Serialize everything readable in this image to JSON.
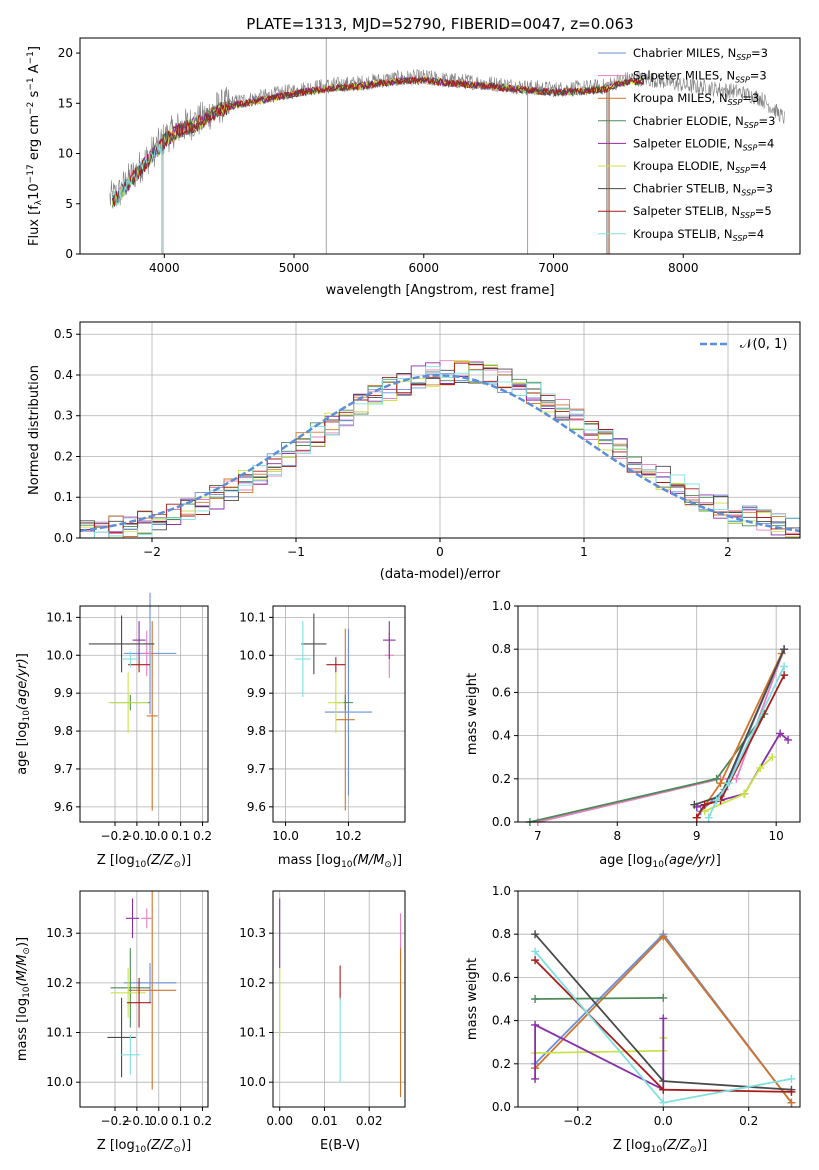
{
  "figure_title": "PLATE=1313, MJD=52790, FIBERID=0047, z=0.063",
  "colors": {
    "Chabrier MILES": "#6a8fd9",
    "Salpeter MILES": "#e87fbf",
    "Kroupa MILES": "#d2732a",
    "Chabrier ELODIE": "#4e8a59",
    "Salpeter ELODIE": "#8b2fa8",
    "Kroupa ELODIE": "#c9e34a",
    "Chabrier STELIB": "#4a4a4a",
    "Salpeter STELIB": "#a81c1c",
    "Kroupa STELIB": "#7ee0e0"
  },
  "chart_data": [
    {
      "id": "spectrum",
      "type": "line",
      "xlabel": "wavelength [Angstrom, rest frame]",
      "ylabel": "Flux [f",
      "xlim": [
        3350,
        8900
      ],
      "ylim": [
        0,
        21.5
      ],
      "xticks": [
        "4000",
        "5000",
        "6000",
        "7000",
        "8000"
      ],
      "yticks": [
        "0",
        "5",
        "10",
        "15",
        "20"
      ],
      "continuum": [
        [
          3580,
          5.5
        ],
        [
          3650,
          6
        ],
        [
          3700,
          7
        ],
        [
          3800,
          8.5
        ],
        [
          3900,
          10
        ],
        [
          4000,
          11.5
        ],
        [
          4100,
          12.5
        ],
        [
          4200,
          13
        ],
        [
          4300,
          13.5
        ],
        [
          4400,
          14.5
        ],
        [
          4500,
          15
        ],
        [
          4700,
          15.5
        ],
        [
          4900,
          16
        ],
        [
          5100,
          16.5
        ],
        [
          5300,
          16.8
        ],
        [
          5500,
          17
        ],
        [
          5800,
          17.5
        ],
        [
          6000,
          17.6
        ],
        [
          6200,
          17.3
        ],
        [
          6500,
          17
        ],
        [
          6800,
          16.6
        ],
        [
          7000,
          16.4
        ],
        [
          7200,
          16.5
        ],
        [
          7400,
          16.7
        ],
        [
          7500,
          17.2
        ],
        [
          7600,
          17.5
        ],
        [
          7800,
          17.3
        ],
        [
          8000,
          16.8
        ],
        [
          8200,
          16.5
        ],
        [
          8400,
          16.2
        ],
        [
          8600,
          15.5
        ],
        [
          8780,
          13.5
        ]
      ],
      "legend": [
        {
          "label": "Chabrier MILES, N",
          "nssp": "=3"
        },
        {
          "label": "Salpeter MILES, N",
          "nssp": "=3"
        },
        {
          "label": "Kroupa MILES, N",
          "nssp": "=3"
        },
        {
          "label": "Chabrier ELODIE, N",
          "nssp": "=3"
        },
        {
          "label": "Salpeter ELODIE, N",
          "nssp": "=4"
        },
        {
          "label": "Kroupa ELODIE, N",
          "nssp": "=4"
        },
        {
          "label": "Chabrier STELIB, N",
          "nssp": "=3"
        },
        {
          "label": "Salpeter STELIB, N",
          "nssp": "=5"
        },
        {
          "label": "Kroupa STELIB, N",
          "nssp": "=4"
        }
      ]
    },
    {
      "id": "residuals",
      "type": "line",
      "xlabel": "(data-model)/error",
      "ylabel": "Normed distribution",
      "xlim": [
        -2.5,
        2.5
      ],
      "ylim": [
        0,
        0.53
      ],
      "xticks": [
        "−2",
        "−1",
        "0",
        "1",
        "2"
      ],
      "yticks": [
        "0.0",
        "0.1",
        "0.2",
        "0.3",
        "0.4",
        "0.5"
      ],
      "grid": true,
      "gaussian_label": "𝒩(0, 1)",
      "gaussian": {
        "mean": 0,
        "sigma": 1
      }
    },
    {
      "id": "age-vs-Z",
      "type": "scatter",
      "xlabel": "Z [log",
      "ylabel": "age  [log",
      "xlim": [
        -0.36,
        0.225
      ],
      "ylim": [
        9.56,
        10.13
      ],
      "xticks": [
        "−0.2",
        "−0.1",
        "0.0",
        "0.1",
        "0.2"
      ],
      "yticks": [
        "9.6",
        "9.7",
        "9.8",
        "9.9",
        "10.0",
        "10.1"
      ],
      "grid": true,
      "points": [
        {
          "model": "Chabrier MILES",
          "x": -0.04,
          "y": 10.005,
          "xerr": 0.24,
          "yerr": 0.16
        },
        {
          "model": "Salpeter MILES",
          "x": -0.055,
          "y": 10.005,
          "xerr": 0.05,
          "yerr": 0.06
        },
        {
          "model": "Kroupa MILES",
          "x": -0.03,
          "y": 9.84,
          "xerr": 0.05,
          "yerr": 0.25
        },
        {
          "model": "Chabrier ELODIE",
          "x": -0.13,
          "y": 9.875,
          "xerr": 0.18,
          "yerr": 0.02
        },
        {
          "model": "Salpeter ELODIE",
          "x": -0.09,
          "y": 10.04,
          "xerr": 0.06,
          "yerr": 0.05
        },
        {
          "model": "Kroupa ELODIE",
          "x": -0.14,
          "y": 9.875,
          "xerr": 0.18,
          "yerr": 0.08
        },
        {
          "model": "Chabrier STELIB",
          "x": -0.17,
          "y": 10.03,
          "xerr": 0.3,
          "yerr": 0.075
        },
        {
          "model": "Salpeter STELIB",
          "x": -0.09,
          "y": 9.975,
          "xerr": 0.1,
          "yerr": 0.02
        },
        {
          "model": "Kroupa STELIB",
          "x": -0.13,
          "y": 9.99,
          "xerr": 0.08,
          "yerr": 0.02
        }
      ]
    },
    {
      "id": "age-vs-mass",
      "type": "scatter",
      "xlabel": "mass [log",
      "ylabel": "",
      "xlim": [
        9.96,
        10.38
      ],
      "ylim": [
        9.56,
        10.13
      ],
      "xticks": [
        "10.0",
        "10.2"
      ],
      "yticks": [
        "9.6",
        "9.7",
        "9.8",
        "9.9",
        "10.0",
        "10.1"
      ],
      "grid": true,
      "points": [
        {
          "model": "Chabrier MILES",
          "x": 10.2,
          "y": 9.85,
          "xerr": 0.15,
          "yerr": 0.22
        },
        {
          "model": "Salpeter MILES",
          "x": 10.33,
          "y": 10.0,
          "xerr": 0.03,
          "yerr": 0.06
        },
        {
          "model": "Kroupa MILES",
          "x": 10.19,
          "y": 9.83,
          "xerr": 0.06,
          "yerr": 0.24
        },
        {
          "model": "Chabrier ELODIE",
          "x": 10.19,
          "y": 9.875,
          "xerr": 0.05,
          "yerr": 0.02
        },
        {
          "model": "Salpeter ELODIE",
          "x": 10.33,
          "y": 10.04,
          "xerr": 0.04,
          "yerr": 0.05
        },
        {
          "model": "Kroupa ELODIE",
          "x": 10.16,
          "y": 9.875,
          "xerr": 0.05,
          "yerr": 0.08
        },
        {
          "model": "Chabrier STELIB",
          "x": 10.09,
          "y": 10.03,
          "xerr": 0.08,
          "yerr": 0.08
        },
        {
          "model": "Salpeter STELIB",
          "x": 10.16,
          "y": 9.975,
          "xerr": 0.06,
          "yerr": 0.02
        },
        {
          "model": "Kroupa STELIB",
          "x": 10.055,
          "y": 9.99,
          "xerr": 0.05,
          "yerr": 0.1
        }
      ]
    },
    {
      "id": "massweight-vs-age",
      "type": "line",
      "xlabel": "age  [log",
      "ylabel": "mass weight",
      "xlim": [
        6.75,
        10.3
      ],
      "ylim": [
        0,
        1
      ],
      "xticks": [
        "7",
        "8",
        "9",
        "10"
      ],
      "yticks": [
        "0.0",
        "0.2",
        "0.4",
        "0.6",
        "0.8",
        "1.0"
      ],
      "grid": true,
      "series": [
        {
          "model": "Salpeter MILES",
          "x": [
            7.0,
            9.3,
            9.5,
            10.1
          ],
          "y": [
            0.0,
            0.2,
            0.2,
            0.8
          ]
        },
        {
          "model": "Chabrier ELODIE",
          "x": [
            6.9,
            9.25,
            9.85
          ],
          "y": [
            0.0,
            0.2,
            0.5
          ]
        },
        {
          "model": "Kroupa MILES",
          "x": [
            9.0,
            9.3,
            10.07
          ],
          "y": [
            0.02,
            0.18,
            0.78
          ]
        },
        {
          "model": "Chabrier MILES",
          "x": [
            9.05,
            9.35,
            10.1
          ],
          "y": [
            0.05,
            0.15,
            0.8
          ]
        },
        {
          "model": "Salpeter ELODIE",
          "x": [
            9.0,
            9.6,
            10.05,
            10.15
          ],
          "y": [
            0.07,
            0.13,
            0.41,
            0.38
          ]
        },
        {
          "model": "Kroupa ELODIE",
          "x": [
            9.1,
            9.6,
            9.8,
            9.95
          ],
          "y": [
            0.05,
            0.13,
            0.25,
            0.3
          ]
        },
        {
          "model": "Chabrier STELIB",
          "x": [
            8.97,
            9.3,
            10.1
          ],
          "y": [
            0.08,
            0.12,
            0.8
          ]
        },
        {
          "model": "Salpeter STELIB",
          "x": [
            9.0,
            9.1,
            9.3,
            10.1
          ],
          "y": [
            0.02,
            0.08,
            0.1,
            0.68
          ]
        },
        {
          "model": "Kroupa STELIB",
          "x": [
            9.15,
            9.25,
            9.4,
            10.1
          ],
          "y": [
            0.02,
            0.1,
            0.18,
            0.72
          ]
        }
      ]
    },
    {
      "id": "mass-vs-Z",
      "type": "scatter",
      "xlabel": "Z [log",
      "ylabel": "mass [log",
      "xlim": [
        -0.36,
        0.225
      ],
      "ylim": [
        9.95,
        10.385
      ],
      "xticks": [
        "−0.2",
        "−0.1",
        "0.0",
        "0.1",
        "0.2"
      ],
      "yticks": [
        "10.0",
        "10.1",
        "10.2",
        "10.3"
      ],
      "grid": true,
      "points": [
        {
          "model": "Chabrier MILES",
          "x": -0.04,
          "y": 10.2,
          "xerr": 0.24,
          "yerr": 0.04
        },
        {
          "model": "Salpeter MILES",
          "x": -0.055,
          "y": 10.33,
          "xerr": 0.05,
          "yerr": 0.02
        },
        {
          "model": "Kroupa MILES",
          "x": -0.03,
          "y": 10.185,
          "xerr": 0.22,
          "yerr": 0.2
        },
        {
          "model": "Chabrier ELODIE",
          "x": -0.13,
          "y": 10.19,
          "xerr": 0.18,
          "yerr": 0.08
        },
        {
          "model": "Salpeter ELODIE",
          "x": -0.12,
          "y": 10.33,
          "xerr": 0.06,
          "yerr": 0.04
        },
        {
          "model": "Kroupa ELODIE",
          "x": -0.14,
          "y": 10.18,
          "xerr": 0.16,
          "yerr": 0.05
        },
        {
          "model": "Chabrier STELIB",
          "x": -0.17,
          "y": 10.09,
          "xerr": 0.13,
          "yerr": 0.08
        },
        {
          "model": "Salpeter STELIB",
          "x": -0.09,
          "y": 10.16,
          "xerr": 0.11,
          "yerr": 0.05
        },
        {
          "model": "Kroupa STELIB",
          "x": -0.13,
          "y": 10.055,
          "xerr": 0.09,
          "yerr": 0.04
        }
      ]
    },
    {
      "id": "mass-vs-ebv",
      "type": "scatter",
      "xlabel": "E(B-V)",
      "ylabel": "",
      "xlim": [
        -0.0015,
        0.028
      ],
      "ylim": [
        9.95,
        10.385
      ],
      "xticks": [
        "0.00",
        "0.01",
        "0.02"
      ],
      "yticks": [
        "10.0",
        "10.1",
        "10.2",
        "10.3"
      ],
      "grid": true,
      "points": [
        {
          "model": "Salpeter ELODIE",
          "x": 0.0,
          "y": 10.3,
          "xerr": 0,
          "yerr": 0.07
        },
        {
          "model": "Kroupa ELODIE",
          "x": 0.0,
          "y": 10.16,
          "xerr": 0,
          "yerr": 0.07
        },
        {
          "model": "Salpeter STELIB",
          "x": 0.0135,
          "y": 10.2,
          "xerr": 0,
          "yerr": 0.035
        },
        {
          "model": "Kroupa STELIB",
          "x": 0.0135,
          "y": 10.085,
          "xerr": 0,
          "yerr": 0.085
        },
        {
          "model": "Salpeter MILES",
          "x": 0.027,
          "y": 10.29,
          "xerr": 0,
          "yerr": 0.05
        },
        {
          "model": "Kroupa MILES",
          "x": 0.027,
          "y": 10.12,
          "xerr": 0,
          "yerr": 0.15
        }
      ]
    },
    {
      "id": "massweight-vs-Z",
      "type": "line",
      "xlabel": "Z [log",
      "ylabel": "mass weight",
      "xlim": [
        -0.34,
        0.32
      ],
      "ylim": [
        0,
        1
      ],
      "xticks": [
        "−0.2",
        "0.0",
        "0.2"
      ],
      "yticks": [
        "0.0",
        "0.2",
        "0.4",
        "0.6",
        "0.8",
        "1.0"
      ],
      "grid": true,
      "series": [
        {
          "model": "Chabrier MILES",
          "x": [
            -0.3,
            0.0,
            0.3
          ],
          "y": [
            0.2,
            0.8,
            0.02
          ]
        },
        {
          "model": "Kroupa MILES",
          "x": [
            -0.3,
            0.0,
            0.3
          ],
          "y": [
            0.18,
            0.79,
            0.02
          ]
        },
        {
          "model": "Chabrier ELODIE",
          "x": [
            -0.3,
            0.0
          ],
          "y": [
            0.5,
            0.505
          ]
        },
        {
          "model": "Kroupa ELODIE",
          "x": [
            -0.3,
            0.0,
            0.0
          ],
          "y": [
            0.25,
            0.26,
            0.32
          ]
        },
        {
          "model": "Salpeter ELODIE",
          "x": [
            -0.3,
            -0.3,
            0.0,
            0.0
          ],
          "y": [
            0.13,
            0.38,
            0.08,
            0.41
          ]
        },
        {
          "model": "Chabrier STELIB",
          "x": [
            -0.3,
            0.0,
            0.3
          ],
          "y": [
            0.8,
            0.12,
            0.08
          ]
        },
        {
          "model": "Salpeter STELIB",
          "x": [
            -0.3,
            0.0,
            0.3
          ],
          "y": [
            0.68,
            0.08,
            0.07
          ]
        },
        {
          "model": "Kroupa STELIB",
          "x": [
            -0.3,
            0.0,
            0.3
          ],
          "y": [
            0.72,
            0.02,
            0.13
          ]
        }
      ]
    }
  ]
}
